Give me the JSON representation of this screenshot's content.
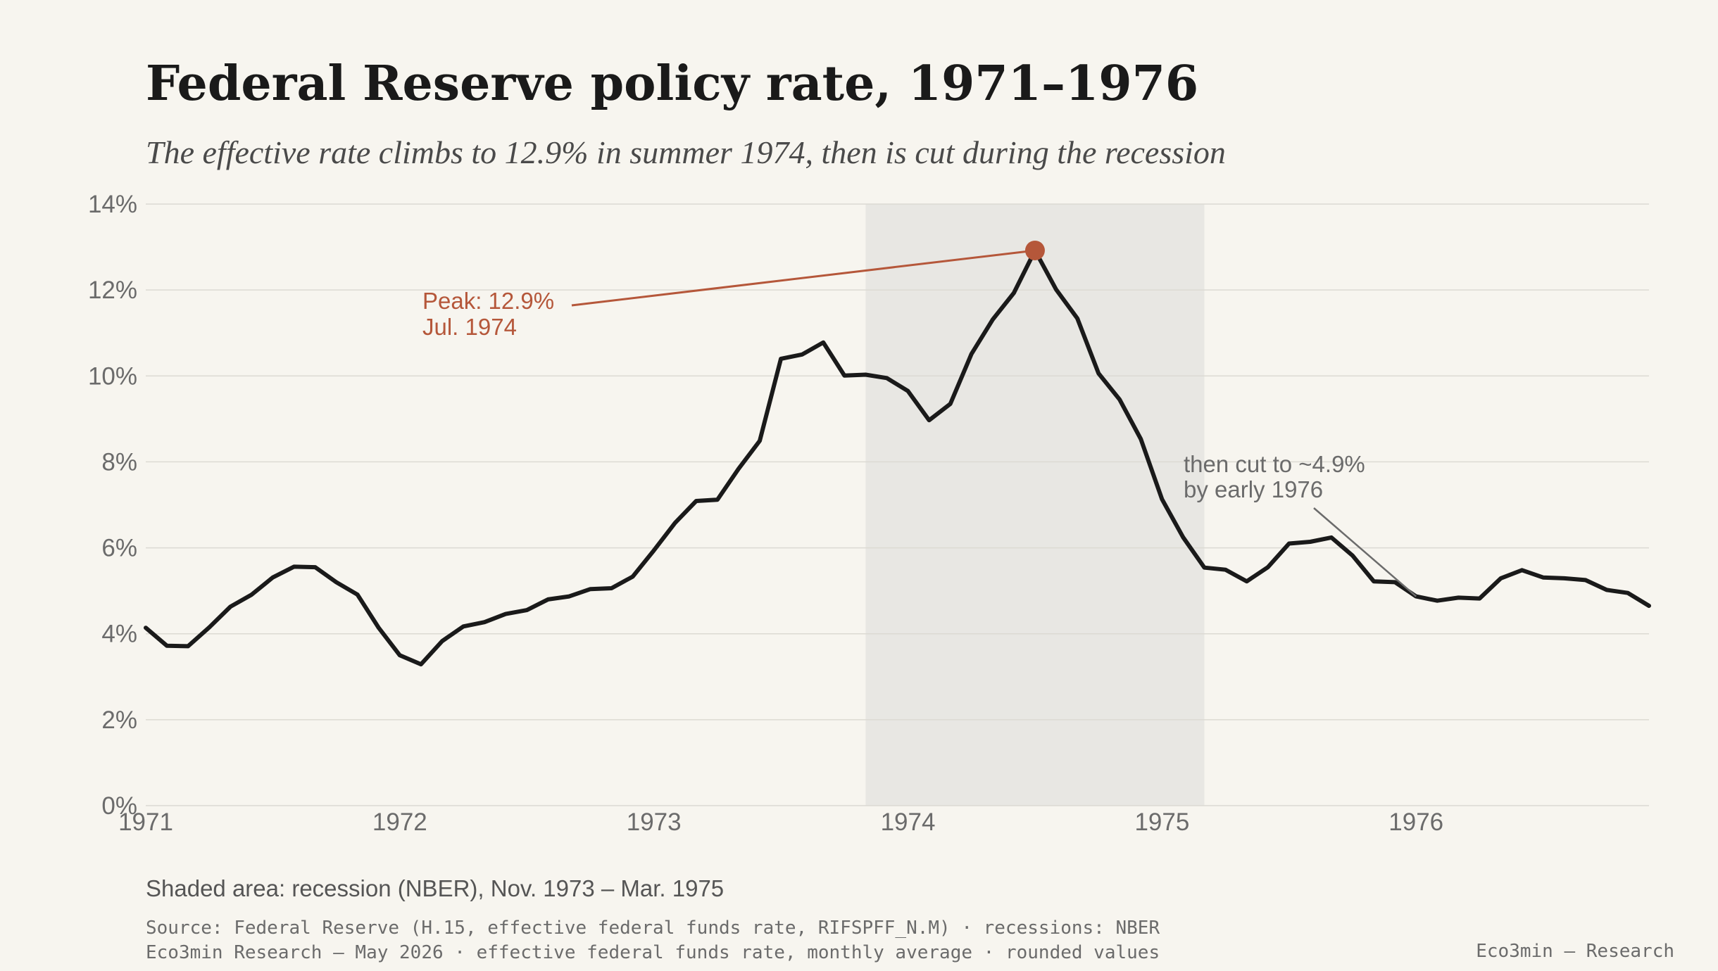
{
  "title": "Federal Reserve policy rate, 1971–1976",
  "subtitle": "The effective rate climbs to 12.9% in summer 1974, then is cut during the recession",
  "colors": {
    "background": "#f7f5ef",
    "line": "#1a1a1a",
    "accent": "#b5573a",
    "recession_shade": "#e8e7e3",
    "grid": "#dcdad3",
    "muted_text": "#6b6b6b"
  },
  "annotations": {
    "peak_line1": "Peak: 12.9%",
    "peak_line2": "Jul. 1974",
    "cut_line1": "then cut to ~4.9%",
    "cut_line2": "by early 1976"
  },
  "footer": {
    "note": "Shaded area: recession (NBER), Nov. 1973 – Mar. 1975",
    "source_line1": "Source: Federal Reserve (H.15, effective federal funds rate, RIFSPFF_N.M) · recessions: NBER",
    "source_line2": "Eco3min Research — May 2026 · effective federal funds rate, monthly average · rounded values",
    "brand": "Eco3min — Research"
  },
  "chart_data": {
    "type": "line",
    "title": "Federal Reserve policy rate, 1971–1976",
    "subtitle": "The effective rate climbs to 12.9% in summer 1974, then is cut during the recession",
    "xlabel": "",
    "ylabel": "",
    "x_ticks": [
      "1971",
      "1972",
      "1973",
      "1974",
      "1975",
      "1976"
    ],
    "y_ticks": [
      "0%",
      "2%",
      "4%",
      "6%",
      "8%",
      "10%",
      "12%",
      "14%"
    ],
    "xlim": [
      "1971-01",
      "1976-12"
    ],
    "ylim": [
      0,
      14
    ],
    "grid": "horizontal",
    "recession": {
      "start": "1973-11",
      "end": "1975-03"
    },
    "peak": {
      "x": "1974-07",
      "y": 12.92
    },
    "cut_point": {
      "x": "1976-01",
      "y": 4.87
    },
    "series": [
      {
        "x": [
          "1971-01",
          "1971-02",
          "1971-03",
          "1971-04",
          "1971-05",
          "1971-06",
          "1971-07",
          "1971-08",
          "1971-09",
          "1971-10",
          "1971-11",
          "1971-12",
          "1972-01",
          "1972-02",
          "1972-03",
          "1972-04",
          "1972-05",
          "1972-06",
          "1972-07",
          "1972-08",
          "1972-09",
          "1972-10",
          "1972-11",
          "1972-12",
          "1973-01",
          "1973-02",
          "1973-03",
          "1973-04",
          "1973-05",
          "1973-06",
          "1973-07",
          "1973-08",
          "1973-09",
          "1973-10",
          "1973-11",
          "1973-12",
          "1974-01",
          "1974-02",
          "1974-03",
          "1974-04",
          "1974-05",
          "1974-06",
          "1974-07",
          "1974-08",
          "1974-09",
          "1974-10",
          "1974-11",
          "1974-12",
          "1975-01",
          "1975-02",
          "1975-03",
          "1975-04",
          "1975-05",
          "1975-06",
          "1975-07",
          "1975-08",
          "1975-09",
          "1975-10",
          "1975-11",
          "1975-12",
          "1976-01",
          "1976-02",
          "1976-03",
          "1976-04",
          "1976-05",
          "1976-06",
          "1976-07",
          "1976-08",
          "1976-09",
          "1976-10",
          "1976-11",
          "1976-12"
        ],
        "values": [
          4.14,
          3.72,
          3.71,
          4.15,
          4.63,
          4.91,
          5.31,
          5.56,
          5.55,
          5.2,
          4.91,
          4.14,
          3.5,
          3.29,
          3.83,
          4.17,
          4.27,
          4.46,
          4.55,
          4.8,
          4.87,
          5.04,
          5.06,
          5.33,
          5.94,
          6.58,
          7.09,
          7.12,
          7.84,
          8.49,
          10.4,
          10.5,
          10.78,
          10.01,
          10.03,
          9.95,
          9.65,
          8.97,
          9.35,
          10.51,
          11.31,
          11.93,
          12.92,
          12.01,
          11.34,
          10.06,
          9.45,
          8.53,
          7.13,
          6.24,
          5.54,
          5.49,
          5.22,
          5.55,
          6.1,
          6.14,
          6.24,
          5.82,
          5.22,
          5.2,
          4.87,
          4.77,
          4.84,
          4.82,
          5.29,
          5.48,
          5.31,
          5.29,
          5.25,
          5.02,
          4.95,
          4.65
        ]
      }
    ]
  }
}
